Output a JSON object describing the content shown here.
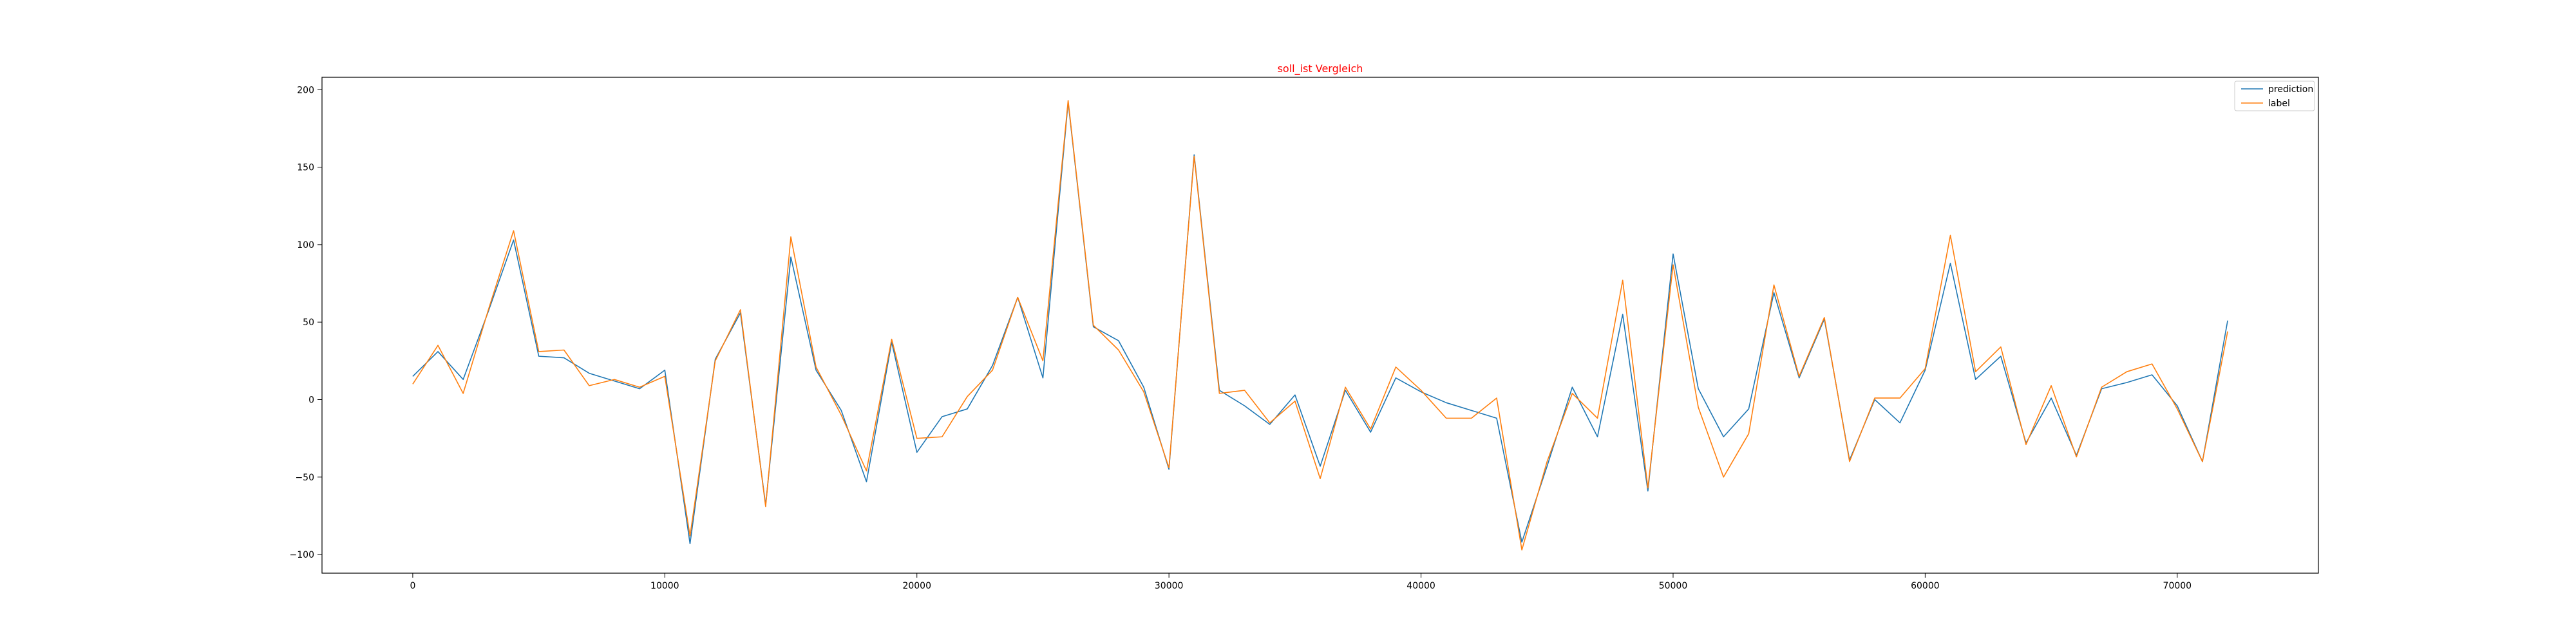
{
  "chart_data": {
    "type": "line",
    "title": "soll_ist Vergleich",
    "title_color": "#ff0000",
    "xlabel": "",
    "ylabel": "",
    "xlim": [
      -3600,
      75600
    ],
    "ylim": [
      -112,
      208
    ],
    "xticks": [
      0,
      10000,
      20000,
      30000,
      40000,
      50000,
      60000,
      70000
    ],
    "xtick_labels": [
      "0",
      "10000",
      "20000",
      "30000",
      "40000",
      "50000",
      "60000",
      "70000"
    ],
    "yticks": [
      -100,
      -50,
      0,
      50,
      100,
      150,
      200
    ],
    "ytick_labels": [
      "−100",
      "−50",
      "0",
      "50",
      "100",
      "150",
      "200"
    ],
    "grid": false,
    "legend_position": "top-right",
    "x": [
      0,
      1000,
      2000,
      3000,
      4000,
      5000,
      6000,
      7000,
      8000,
      9000,
      10000,
      11000,
      12000,
      13000,
      14000,
      15000,
      16000,
      17000,
      18000,
      19000,
      20000,
      21000,
      22000,
      23000,
      24000,
      25000,
      26000,
      27000,
      28000,
      29000,
      30000,
      31000,
      32000,
      33000,
      34000,
      35000,
      36000,
      37000,
      38000,
      39000,
      40000,
      41000,
      42000,
      43000,
      44000,
      45000,
      46000,
      47000,
      48000,
      49000,
      50000,
      51000,
      52000,
      53000,
      54000,
      55000,
      56000,
      57000,
      58000,
      59000,
      60000,
      61000,
      62000,
      63000,
      64000,
      65000,
      66000,
      67000,
      68000,
      69000,
      70000,
      71000,
      72000
    ],
    "series": [
      {
        "name": "prediction",
        "color": "#1f77b4",
        "values": [
          15,
          31,
          13,
          57,
          103,
          28,
          27,
          17,
          12,
          7,
          19,
          -93,
          26,
          56,
          -68,
          92,
          19,
          -7,
          -53,
          37,
          -34,
          -11,
          -6,
          22,
          66,
          14,
          192,
          47,
          38,
          8,
          -45,
          158,
          6,
          -4,
          -16,
          3,
          -43,
          6,
          -21,
          14,
          5,
          -2,
          -7,
          -12,
          -92,
          -43,
          8,
          -24,
          55,
          -59,
          94,
          7,
          -24,
          -6,
          69,
          14,
          52,
          -39,
          0,
          -15,
          19,
          88,
          13,
          28,
          -28,
          1,
          -36,
          7,
          11,
          16,
          -4,
          -40,
          51
        ]
      },
      {
        "name": "label",
        "color": "#ff7f0e",
        "values": [
          10,
          35,
          4,
          58,
          109,
          31,
          32,
          9,
          13,
          8,
          15,
          -88,
          25,
          58,
          -69,
          105,
          21,
          -10,
          -46,
          39,
          -25,
          -24,
          2,
          19,
          66,
          25,
          193,
          48,
          32,
          5,
          -44,
          157,
          4,
          6,
          -15,
          -1,
          -51,
          8,
          -19,
          21,
          6,
          -12,
          -12,
          1,
          -97,
          -40,
          4,
          -12,
          77,
          -57,
          87,
          -5,
          -50,
          -22,
          74,
          15,
          53,
          -40,
          1,
          1,
          20,
          106,
          18,
          34,
          -29,
          9,
          -37,
          8,
          18,
          23,
          -6,
          -40,
          44
        ]
      }
    ]
  }
}
